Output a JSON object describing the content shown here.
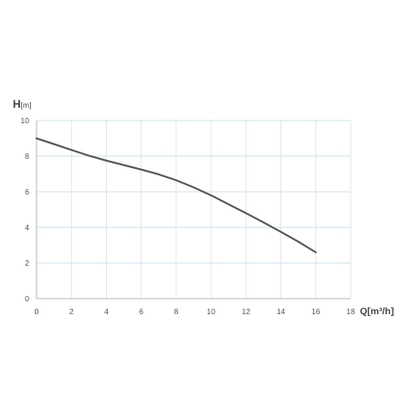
{
  "chart_data": {
    "type": "line",
    "ylabel_main": "H",
    "ylabel_unit": "[m]",
    "xlabel": "Q[m³/h]",
    "xlim": [
      0,
      18
    ],
    "ylim": [
      0,
      10
    ],
    "x_ticks": [
      0,
      2,
      4,
      6,
      8,
      10,
      12,
      14,
      16,
      18
    ],
    "y_ticks": [
      0,
      2,
      4,
      6,
      8,
      10
    ],
    "grid": true,
    "series": [
      {
        "x": [
          0,
          1,
          2,
          3,
          4,
          5,
          6,
          7,
          8,
          9,
          10,
          11,
          12,
          13,
          14,
          15,
          16
        ],
        "y": [
          9.0,
          8.68,
          8.35,
          8.03,
          7.75,
          7.5,
          7.25,
          6.98,
          6.65,
          6.25,
          5.8,
          5.3,
          4.8,
          4.28,
          3.75,
          3.2,
          2.6
        ],
        "color": "#555555"
      }
    ]
  }
}
